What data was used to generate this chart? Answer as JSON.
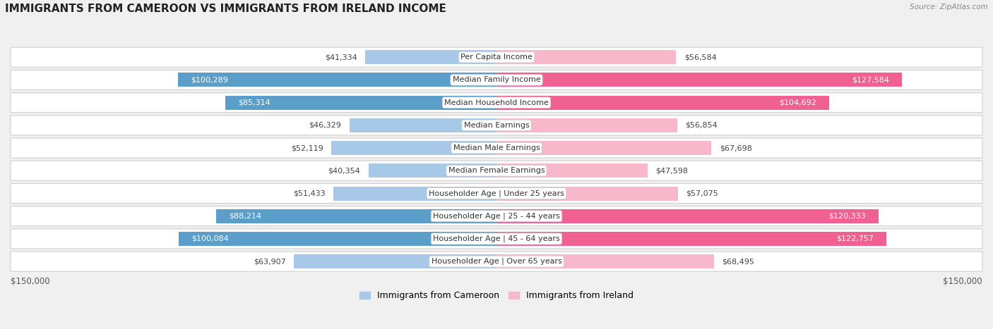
{
  "title": "IMMIGRANTS FROM CAMEROON VS IMMIGRANTS FROM IRELAND INCOME",
  "source": "Source: ZipAtlas.com",
  "categories": [
    "Per Capita Income",
    "Median Family Income",
    "Median Household Income",
    "Median Earnings",
    "Median Male Earnings",
    "Median Female Earnings",
    "Householder Age | Under 25 years",
    "Householder Age | 25 - 44 years",
    "Householder Age | 45 - 64 years",
    "Householder Age | Over 65 years"
  ],
  "cameroon_values": [
    41334,
    100289,
    85314,
    46329,
    52119,
    40354,
    51433,
    88214,
    100084,
    63907
  ],
  "ireland_values": [
    56584,
    127584,
    104692,
    56854,
    67698,
    47598,
    57075,
    120333,
    122757,
    68495
  ],
  "cameroon_labels": [
    "$41,334",
    "$100,289",
    "$85,314",
    "$46,329",
    "$52,119",
    "$40,354",
    "$51,433",
    "$88,214",
    "$100,084",
    "$63,907"
  ],
  "ireland_labels": [
    "$56,584",
    "$127,584",
    "$104,692",
    "$56,854",
    "$67,698",
    "$47,598",
    "$57,075",
    "$120,333",
    "$122,757",
    "$68,495"
  ],
  "cameroon_color_light": "#a8c8e8",
  "cameroon_color_dark": "#5b9ec9",
  "ireland_color_light": "#f8b8cc",
  "ireland_color_dark": "#f06090",
  "cameroon_threshold": 75000,
  "ireland_threshold": 90000,
  "max_value": 150000,
  "axis_label_left": "$150,000",
  "axis_label_right": "$150,000",
  "legend_cameroon": "Immigrants from Cameroon",
  "legend_ireland": "Immigrants from Ireland",
  "background_color": "#f0f0f0",
  "row_background": "#ffffff",
  "row_border": "#d0d0d0",
  "bar_height": 0.62,
  "title_fontsize": 11,
  "label_fontsize": 8,
  "category_fontsize": 8,
  "source_fontsize": 7.5
}
